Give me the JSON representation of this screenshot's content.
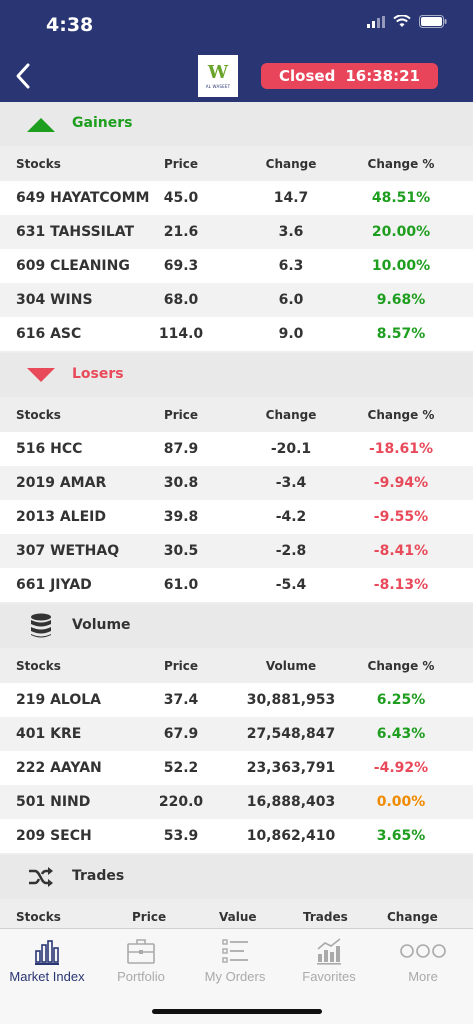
{
  "status_bar": {
    "time": "4:38"
  },
  "header": {
    "logo_text": "AL WASEET",
    "logo_letter": "W",
    "market_status": "Closed",
    "market_time": "16:38:21"
  },
  "gainers": {
    "title": "Gainers",
    "columns": [
      "Stocks",
      "Price",
      "Change",
      "Change %"
    ],
    "rows": [
      {
        "name": "649 HAYATCOMM",
        "price": "45.0",
        "change": "14.7",
        "pct": "48.51%"
      },
      {
        "name": "631 TAHSSILAT",
        "price": "21.6",
        "change": "3.6",
        "pct": "20.00%"
      },
      {
        "name": "609 CLEANING",
        "price": "69.3",
        "change": "6.3",
        "pct": "10.00%"
      },
      {
        "name": "304 WINS",
        "price": "68.0",
        "change": "6.0",
        "pct": "9.68%"
      },
      {
        "name": "616 ASC",
        "price": "114.0",
        "change": "9.0",
        "pct": "8.57%"
      }
    ]
  },
  "losers": {
    "title": "Losers",
    "columns": [
      "Stocks",
      "Price",
      "Change",
      "Change %"
    ],
    "rows": [
      {
        "name": "516 HCC",
        "price": "87.9",
        "change": "-20.1",
        "pct": "-18.61%"
      },
      {
        "name": "2019 AMAR",
        "price": "30.8",
        "change": "-3.4",
        "pct": "-9.94%"
      },
      {
        "name": "2013 ALEID",
        "price": "39.8",
        "change": "-4.2",
        "pct": "-9.55%"
      },
      {
        "name": "307 WETHAQ",
        "price": "30.5",
        "change": "-2.8",
        "pct": "-8.41%"
      },
      {
        "name": "661 JIYAD",
        "price": "61.0",
        "change": "-5.4",
        "pct": "-8.13%"
      }
    ]
  },
  "volume": {
    "title": "Volume",
    "columns": [
      "Stocks",
      "Price",
      "Volume",
      "Change %"
    ],
    "rows": [
      {
        "name": "219 ALOLA",
        "price": "37.4",
        "volume": "30,881,953",
        "pct": "6.25%"
      },
      {
        "name": "401 KRE",
        "price": "67.9",
        "volume": "27,548,847",
        "pct": "6.43%"
      },
      {
        "name": "222 AAYAN",
        "price": "52.2",
        "volume": "23,363,791",
        "pct": "-4.92%"
      },
      {
        "name": "501 NIND",
        "price": "220.0",
        "volume": "16,888,403",
        "pct": "0.00%"
      },
      {
        "name": "209 SECH",
        "price": "53.9",
        "volume": "10,862,410",
        "pct": "3.65%"
      }
    ]
  },
  "trades": {
    "title": "Trades",
    "columns": [
      "Stocks",
      "Price",
      "Value",
      "Trades",
      "Change"
    ]
  },
  "tabs": [
    {
      "label": "Market Index",
      "icon": "bar-chart-icon",
      "active": true
    },
    {
      "label": "Portfolio",
      "icon": "briefcase-icon",
      "active": false
    },
    {
      "label": "My Orders",
      "icon": "list-icon",
      "active": false
    },
    {
      "label": "Favorites",
      "icon": "trend-chart-icon",
      "active": false
    },
    {
      "label": "More",
      "icon": "more-dots-icon",
      "active": false
    }
  ],
  "colors": {
    "header": "#2a3574",
    "positive": "#1e9e1e",
    "negative": "#e84a5a",
    "neutral": "#f08a00",
    "closed_badge": "#e8455a"
  }
}
